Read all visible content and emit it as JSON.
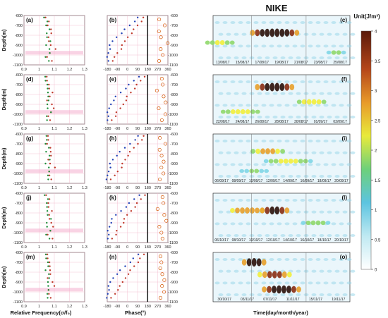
{
  "title": "NIKE",
  "colorbar": {
    "label": "Unit(J/m³)",
    "ticks": [
      "0",
      "0.5",
      "1",
      "1.5",
      "2",
      "2.5",
      "3",
      "3.5",
      "4"
    ],
    "colors": [
      "#ffffff",
      "#7fd6e6",
      "#38b7d8",
      "#8fd86a",
      "#f2ee3b",
      "#e8a02a",
      "#c85a1a",
      "#7a2a0e"
    ]
  },
  "y_axis_label": "Depth(m)",
  "x_labels": {
    "col1": "Relative Frequency(σ/f₀)",
    "col2": "Phase(°)",
    "col3": "Time(day/month/year)"
  },
  "series_colors": {
    "red": "#c0392b",
    "blue": "#1f3fb5",
    "green": "#1e8f3a",
    "circle": "#d35400"
  },
  "rows": [
    {
      "labels": [
        "(a)",
        "(b)",
        "(c)"
      ],
      "dates": [
        "13/08/17",
        "15/08/17",
        "17/08/17",
        "19/08/17",
        "21/08/17",
        "23/08/17",
        "25/08/17"
      ],
      "blobs": [
        [
          0.45,
          0.35,
          0.7,
          4
        ],
        [
          0.05,
          0.55,
          0.45,
          1.5
        ],
        [
          0.9,
          0.75,
          0.25,
          1.2
        ]
      ]
    },
    {
      "labels": [
        "(d)",
        "(e)",
        "(f)"
      ],
      "dates": [
        "22/08/17",
        "24/08/17",
        "26/08/17",
        "28/08/17",
        "30/08/17",
        "01/09/17",
        "03/09/17"
      ],
      "blobs": [
        [
          0.45,
          0.25,
          0.6,
          4
        ],
        [
          0.72,
          0.55,
          0.4,
          2
        ],
        [
          0.2,
          0.75,
          0.55,
          1.6
        ]
      ]
    },
    {
      "labels": [
        "(g)",
        "(h)",
        "(i)"
      ],
      "dates": [
        "06/09/17",
        "08/09/17",
        "10/09/17",
        "12/09/17",
        "14/09/17",
        "16/09/17",
        "18/09/17",
        "20/09/17"
      ],
      "blobs": [
        [
          0.4,
          0.35,
          0.5,
          2.2
        ],
        [
          0.55,
          0.55,
          0.7,
          1.5
        ],
        [
          0.3,
          0.75,
          0.4,
          1.0
        ]
      ]
    },
    {
      "labels": [
        "(j)",
        "(k)",
        "(l)"
      ],
      "dates": [
        "06/10/17",
        "08/10/17",
        "10/10/17",
        "12/10/17",
        "14/10/17",
        "16/10/17",
        "18/10/17",
        "20/10/17"
      ],
      "blobs": [
        [
          0.25,
          0.35,
          0.5,
          2.5
        ],
        [
          0.45,
          0.35,
          0.4,
          3.8
        ],
        [
          0.75,
          0.6,
          0.4,
          1.4
        ]
      ]
    },
    {
      "labels": [
        "(m)",
        "(n)",
        "(o)"
      ],
      "dates": [
        "30/10/17",
        "03/11/17",
        "07/11/17",
        "11/11/17",
        "15/11/17",
        "19/11/17"
      ],
      "blobs": [
        [
          0.3,
          0.2,
          0.35,
          4
        ],
        [
          0.45,
          0.45,
          0.5,
          3.2
        ],
        [
          0.5,
          0.75,
          0.55,
          3.8
        ]
      ]
    }
  ],
  "chart_data": [
    {
      "type": "scatter",
      "panels": [
        "(a)",
        "(d)",
        "(g)",
        "(j)",
        "(m)"
      ],
      "xlabel": "Relative Frequency(σ/f₀)",
      "ylabel": "Depth(m)",
      "xlim": [
        0.9,
        1.3
      ],
      "ylim": [
        -1100,
        -600
      ],
      "xticks": [
        0.9,
        1.0,
        1.1,
        1.2,
        1.3
      ],
      "xtick_labels": [
        "0.9",
        "1",
        "1.1",
        "1.2",
        "1.3"
      ],
      "yticks": [
        -600,
        -700,
        -800,
        -900,
        -1000,
        -1100
      ],
      "ytick_labels": [
        "-600",
        "-700",
        "-800",
        "-900",
        "-1000",
        "-1100"
      ],
      "series": [
        {
          "color": "red",
          "y": [
            -620,
            -660,
            -700,
            -740,
            -780,
            -820,
            -860,
            -900,
            -940,
            -980,
            -1020,
            -1060
          ],
          "x": [
            1.05,
            1.06,
            1.06,
            1.07,
            1.08,
            1.07,
            1.06,
            1.08,
            1.1,
            1.07,
            1.06,
            1.08
          ]
        },
        {
          "color": "green",
          "y": [
            -620,
            -660,
            -700,
            -740,
            -780,
            -820,
            -860,
            -900,
            -940,
            -980,
            -1020,
            -1060
          ],
          "x": [
            1.04,
            1.05,
            1.05,
            1.06,
            1.05,
            1.06,
            1.07,
            1.05,
            1.06,
            1.07,
            1.05,
            1.06
          ]
        }
      ]
    },
    {
      "type": "scatter",
      "panels": [
        "(b)",
        "(e)",
        "(h)",
        "(k)",
        "(n)"
      ],
      "xlabel": "Phase(°)",
      "ylabel": "",
      "xlim": [
        -180,
        360
      ],
      "ylim": [
        -1100,
        -600
      ],
      "xticks": [
        -180,
        -90,
        0,
        90,
        180,
        270,
        360
      ],
      "xtick_labels": [
        "-180",
        "-90",
        "0",
        "90",
        "180",
        "270",
        "360"
      ],
      "series": [
        {
          "color": "red",
          "y": [
            -620,
            -660,
            -700,
            -740,
            -780,
            -820,
            -860,
            -900,
            -940,
            -980,
            -1020,
            -1060
          ],
          "x": [
            150,
            120,
            90,
            60,
            30,
            0,
            -20,
            -40,
            -60,
            -90,
            -110,
            -140
          ]
        },
        {
          "color": "blue",
          "y": [
            -620,
            -660,
            -700,
            -740,
            -780,
            -820,
            -860,
            -900,
            -940,
            -980,
            -1020,
            -1060
          ],
          "x": [
            100,
            60,
            20,
            -20,
            -60,
            -100,
            -130,
            -150,
            -160,
            -170,
            -175,
            -178
          ]
        },
        {
          "color": "circle",
          "y": [
            -640,
            -700,
            -760,
            -820,
            -880,
            -940,
            -1000,
            -1060
          ],
          "x": [
            300,
            320,
            280,
            310,
            340,
            290,
            320,
            300
          ]
        }
      ]
    }
  ]
}
